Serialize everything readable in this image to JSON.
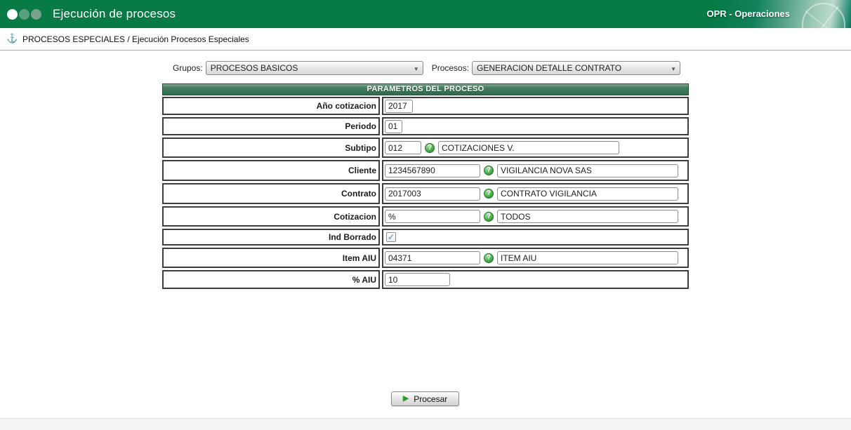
{
  "header": {
    "title": "Ejecución de procesos",
    "app_badge": "OPR - Operaciones"
  },
  "breadcrumb": {
    "path": "PROCESOS ESPECIALES / Ejecución Procesos Especiales"
  },
  "selectors": {
    "grupos": {
      "label": "Grupos:",
      "value": "PROCESOS BASICOS"
    },
    "procesos": {
      "label": "Procesos:",
      "value": "GENERACION DETALLE CONTRATO"
    }
  },
  "form": {
    "title": "PARAMETROS DEL PROCESO",
    "rows": [
      {
        "label": "Año cotizacion",
        "value": "2017"
      },
      {
        "label": "Periodo",
        "value": "01"
      },
      {
        "label": "Subtipo",
        "value": "012",
        "desc": "COTIZACIONES V."
      },
      {
        "label": "Cliente",
        "value": "1234567890",
        "desc": "VIGILANCIA NOVA SAS"
      },
      {
        "label": "Contrato",
        "value": "2017003",
        "desc": "CONTRATO VIGILANCIA"
      },
      {
        "label": "Cotizacion",
        "value": "%",
        "desc": "TODOS"
      },
      {
        "label": "Ind Borrado",
        "checked": true
      },
      {
        "label": "Item AIU",
        "value": "04371",
        "desc": "ITEM AIU"
      },
      {
        "label": "% AIU",
        "value": "10"
      }
    ]
  },
  "actions": {
    "procesar": "Procesar"
  },
  "icons": {
    "help": "?",
    "dropdown": "▼",
    "play": "▶",
    "anchor": "⚓",
    "check": "✓"
  },
  "colors": {
    "header_green": "#077a46",
    "table_header_green": "#477d61",
    "help_green": "#4caf50"
  }
}
